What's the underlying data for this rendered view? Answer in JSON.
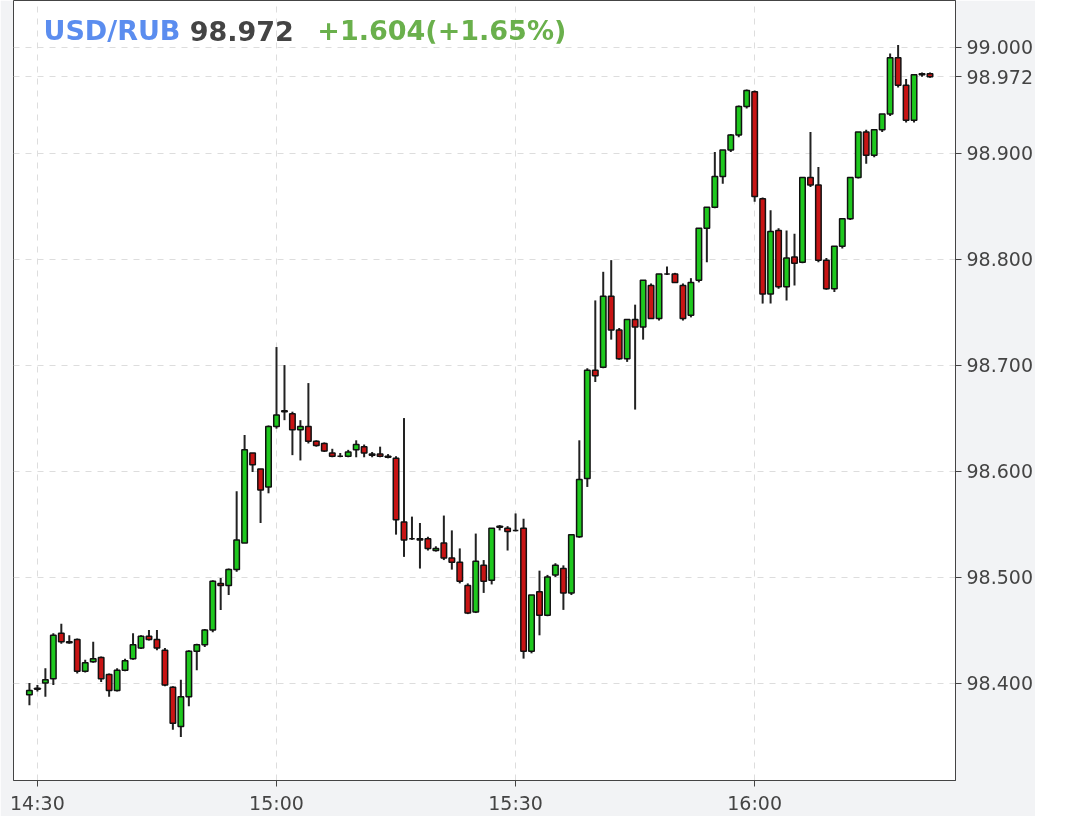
{
  "chart_data": {
    "type": "candlestick",
    "title": "USD/RUB",
    "subtitle": "98.972",
    "annotations": [
      "+1.604(+1.65%)"
    ],
    "x": [
      14.4833,
      14.5,
      14.5167,
      14.5333,
      14.55,
      14.5667,
      14.5833,
      14.6,
      14.6167,
      14.6333,
      14.65,
      14.6667,
      14.6833,
      14.7,
      14.7167,
      14.7333,
      14.75,
      14.7667,
      14.7833,
      14.8,
      14.8167,
      14.8333,
      14.85,
      14.8667,
      14.8833,
      14.9,
      14.9167,
      14.9333,
      14.95,
      14.9667,
      14.9833,
      15.0,
      15.0167,
      15.0333,
      15.05,
      15.0667,
      15.0833,
      15.1,
      15.1167,
      15.1333,
      15.15,
      15.1667,
      15.1833,
      15.2,
      15.2167,
      15.2333,
      15.25,
      15.2667,
      15.2833,
      15.3,
      15.3167,
      15.3333,
      15.35,
      15.3667,
      15.3833,
      15.4,
      15.4167,
      15.4333,
      15.45,
      15.4667,
      15.4833,
      15.5,
      15.5167,
      15.5333,
      15.55,
      15.5667,
      15.5833,
      15.6,
      15.6167,
      15.6333,
      15.65,
      15.6667,
      15.6833,
      15.7,
      15.7167,
      15.7333,
      15.75,
      15.7667,
      15.7833,
      15.8,
      15.8167,
      15.8333,
      15.85,
      15.8667,
      15.8833,
      15.9,
      15.9167,
      15.9333,
      15.95,
      15.9667,
      15.9833,
      16.0,
      16.0167,
      16.0333,
      16.05,
      16.0667,
      16.0833,
      16.1,
      16.1167,
      16.1333,
      16.15,
      16.1667,
      16.1833,
      16.2,
      16.2167,
      16.2333,
      16.25,
      16.2667,
      16.2833,
      16.3,
      16.3167,
      16.3333,
      16.35,
      16.3667
    ],
    "ohlc": [
      [
        98.389,
        98.4,
        98.379,
        98.393
      ],
      [
        98.395,
        98.398,
        98.392,
        98.394
      ],
      [
        98.4,
        98.414,
        98.387,
        98.403
      ],
      [
        98.404,
        98.447,
        98.398,
        98.445
      ],
      [
        98.447,
        98.456,
        98.437,
        98.439
      ],
      [
        98.439,
        98.445,
        98.437,
        98.438
      ],
      [
        98.441,
        98.442,
        98.409,
        98.411
      ],
      [
        98.411,
        98.422,
        98.41,
        98.419
      ],
      [
        98.42,
        98.439,
        98.419,
        98.423
      ],
      [
        98.424,
        98.425,
        98.401,
        98.404
      ],
      [
        98.408,
        98.409,
        98.387,
        98.393
      ],
      [
        98.393,
        98.414,
        98.392,
        98.412
      ],
      [
        98.412,
        98.423,
        98.411,
        98.421
      ],
      [
        98.423,
        98.447,
        98.422,
        98.436
      ],
      [
        98.433,
        98.445,
        98.432,
        98.444
      ],
      [
        98.444,
        98.45,
        98.44,
        98.441
      ],
      [
        98.441,
        98.45,
        98.431,
        98.433
      ],
      [
        98.431,
        98.433,
        98.397,
        98.398
      ],
      [
        98.396,
        98.397,
        98.356,
        98.362
      ],
      [
        98.359,
        98.403,
        98.349,
        98.387
      ],
      [
        98.387,
        98.431,
        98.378,
        98.43
      ],
      [
        98.43,
        98.437,
        98.412,
        98.436
      ],
      [
        98.436,
        98.451,
        98.434,
        98.45
      ],
      [
        98.45,
        98.497,
        98.448,
        98.496
      ],
      [
        98.494,
        98.499,
        98.469,
        98.492
      ],
      [
        98.492,
        98.508,
        98.483,
        98.507
      ],
      [
        98.507,
        98.581,
        98.505,
        98.535
      ],
      [
        98.532,
        98.634,
        98.532,
        98.62
      ],
      [
        98.617,
        98.617,
        98.599,
        98.606
      ],
      [
        98.602,
        98.602,
        98.551,
        98.582
      ],
      [
        98.585,
        98.643,
        98.579,
        98.642
      ],
      [
        98.642,
        98.717,
        98.64,
        98.653
      ],
      [
        98.657,
        98.7,
        98.648,
        98.656
      ],
      [
        98.654,
        98.656,
        98.615,
        98.639
      ],
      [
        98.639,
        98.648,
        98.61,
        98.642
      ],
      [
        98.642,
        98.683,
        98.626,
        98.628
      ],
      [
        98.628,
        98.629,
        98.623,
        98.624
      ],
      [
        98.626,
        98.627,
        98.618,
        98.619
      ],
      [
        98.617,
        98.621,
        98.613,
        98.614
      ],
      [
        98.614,
        98.617,
        98.613,
        98.614
      ],
      [
        98.614,
        98.62,
        98.613,
        98.618
      ],
      [
        98.62,
        98.629,
        98.613,
        98.625
      ],
      [
        98.623,
        98.625,
        98.613,
        98.617
      ],
      [
        98.616,
        98.618,
        98.613,
        98.615
      ],
      [
        98.616,
        98.623,
        98.613,
        98.614
      ],
      [
        98.614,
        98.616,
        98.612,
        98.613
      ],
      [
        98.612,
        98.614,
        98.54,
        98.554
      ],
      [
        98.552,
        98.65,
        98.519,
        98.535
      ],
      [
        98.536,
        98.557,
        98.535,
        98.536
      ],
      [
        98.536,
        98.551,
        98.508,
        98.535
      ],
      [
        98.536,
        98.538,
        98.525,
        98.527
      ],
      [
        98.525,
        98.529,
        98.524,
        98.527
      ],
      [
        98.532,
        98.558,
        98.516,
        98.518
      ],
      [
        98.518,
        98.544,
        98.507,
        98.514
      ],
      [
        98.514,
        98.527,
        98.494,
        98.496
      ],
      [
        98.492,
        98.494,
        98.465,
        98.466
      ],
      [
        98.467,
        98.541,
        98.466,
        98.515
      ],
      [
        98.511,
        98.516,
        98.485,
        98.496
      ],
      [
        98.497,
        98.546,
        98.493,
        98.546
      ],
      [
        98.548,
        98.549,
        98.544,
        98.547
      ],
      [
        98.546,
        98.548,
        98.525,
        98.543
      ],
      [
        98.544,
        98.56,
        98.543,
        98.544
      ],
      [
        98.546,
        98.555,
        98.423,
        98.43
      ],
      [
        98.43,
        98.483,
        98.428,
        98.483
      ],
      [
        98.486,
        98.506,
        98.445,
        98.464
      ],
      [
        98.464,
        98.502,
        98.463,
        98.5
      ],
      [
        98.502,
        98.513,
        98.5,
        98.511
      ],
      [
        98.508,
        98.511,
        98.469,
        98.485
      ],
      [
        98.485,
        98.54,
        98.483,
        98.54
      ],
      [
        98.538,
        98.629,
        98.537,
        98.592
      ],
      [
        98.593,
        98.697,
        98.585,
        98.695
      ],
      [
        98.695,
        98.761,
        98.684,
        98.69
      ],
      [
        98.698,
        98.788,
        98.697,
        98.765
      ],
      [
        98.765,
        98.799,
        98.724,
        98.733
      ],
      [
        98.733,
        98.735,
        98.705,
        98.706
      ],
      [
        98.706,
        98.743,
        98.703,
        98.743
      ],
      [
        98.743,
        98.757,
        98.658,
        98.736
      ],
      [
        98.736,
        98.78,
        98.724,
        98.78
      ],
      [
        98.775,
        98.777,
        98.744,
        98.744
      ],
      [
        98.744,
        98.786,
        98.742,
        98.786
      ],
      [
        98.786,
        98.793,
        98.785,
        98.786
      ],
      [
        98.786,
        98.787,
        98.778,
        98.778
      ],
      [
        98.775,
        98.777,
        98.742,
        98.744
      ],
      [
        98.747,
        98.782,
        98.745,
        98.778
      ],
      [
        98.78,
        98.829,
        98.778,
        98.829
      ],
      [
        98.829,
        98.849,
        98.797,
        98.849
      ],
      [
        98.849,
        98.901,
        98.848,
        98.878
      ],
      [
        98.878,
        98.903,
        98.871,
        98.903
      ],
      [
        98.903,
        98.918,
        98.901,
        98.917
      ],
      [
        98.917,
        98.945,
        98.915,
        98.944
      ],
      [
        98.944,
        98.96,
        98.942,
        98.959
      ],
      [
        98.958,
        98.959,
        98.854,
        98.859
      ],
      [
        98.857,
        98.858,
        98.758,
        98.767
      ],
      [
        98.767,
        98.846,
        98.758,
        98.826
      ],
      [
        98.827,
        98.829,
        98.772,
        98.774
      ],
      [
        98.774,
        98.827,
        98.761,
        98.801
      ],
      [
        98.802,
        98.824,
        98.775,
        98.796
      ],
      [
        98.797,
        98.877,
        98.796,
        98.877
      ],
      [
        98.877,
        98.92,
        98.868,
        98.87
      ],
      [
        98.87,
        98.887,
        98.797,
        98.799
      ],
      [
        98.799,
        98.801,
        98.771,
        98.772
      ],
      [
        98.772,
        98.812,
        98.769,
        98.812
      ],
      [
        98.812,
        98.838,
        98.81,
        98.838
      ],
      [
        98.838,
        98.877,
        98.837,
        98.877
      ],
      [
        98.877,
        98.92,
        98.876,
        98.92
      ],
      [
        98.92,
        98.922,
        98.89,
        98.898
      ],
      [
        98.898,
        98.922,
        98.896,
        98.922
      ],
      [
        98.922,
        98.937,
        98.92,
        98.937
      ],
      [
        98.937,
        98.994,
        98.935,
        98.99
      ],
      [
        98.99,
        99.002,
        98.962,
        98.964
      ],
      [
        98.964,
        98.97,
        98.929,
        98.931
      ],
      [
        98.931,
        98.974,
        98.929,
        98.974
      ],
      [
        98.975,
        98.976,
        98.972,
        98.974
      ],
      [
        98.975,
        98.976,
        98.971,
        98.972
      ]
    ],
    "xlim": [
      14.45,
      16.42
    ],
    "ylim": [
      98.308,
      99.044
    ],
    "xticks": [
      {
        "value": 14.5,
        "label": "14:30"
      },
      {
        "value": 15.0,
        "label": "15:00"
      },
      {
        "value": 15.5,
        "label": "15:30"
      },
      {
        "value": 16.0,
        "label": "16:00"
      }
    ],
    "yticks": [
      {
        "value": 98.4,
        "label": "98.400"
      },
      {
        "value": 98.5,
        "label": "98.500"
      },
      {
        "value": 98.6,
        "label": "98.600"
      },
      {
        "value": 98.7,
        "label": "98.700"
      },
      {
        "value": 98.8,
        "label": "98.800"
      },
      {
        "value": 98.9,
        "label": "98.900"
      },
      {
        "value": 98.972,
        "label": "98.972"
      },
      {
        "value": 99.0,
        "label": "99.000"
      }
    ],
    "grid": true
  }
}
